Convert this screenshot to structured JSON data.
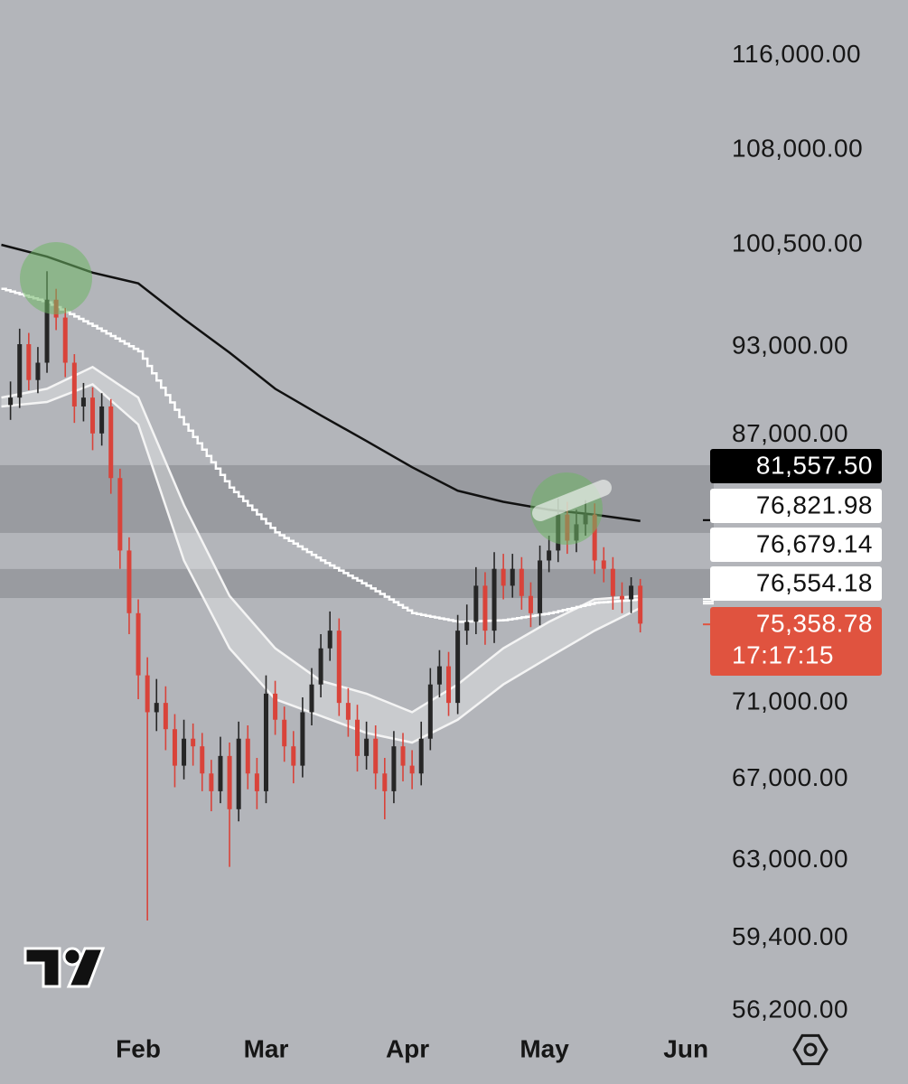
{
  "chart_data": {
    "type": "candlestick",
    "log_scale": true,
    "ylim": [
      55600,
      121000
    ],
    "xlim": [
      -30.3,
      126.1
    ],
    "yticks": [
      {
        "value": 116000,
        "label": "116,000.00"
      },
      {
        "value": 108000,
        "label": "108,000.00"
      },
      {
        "value": 100500,
        "label": "100,500.00"
      },
      {
        "value": 93000,
        "label": "93,000.00"
      },
      {
        "value": 87000,
        "label": "87,000.00"
      },
      {
        "value": 71000,
        "label": "71,000.00"
      },
      {
        "value": 67000,
        "label": "67,000.00"
      },
      {
        "value": 63000,
        "label": "63,000.00"
      },
      {
        "value": 59400,
        "label": "59,400.00"
      },
      {
        "value": 56200,
        "label": "56,200.00"
      }
    ],
    "xticks": [
      {
        "value": 0,
        "label": "Feb"
      },
      {
        "value": 28,
        "label": "Mar"
      },
      {
        "value": 59,
        "label": "Apr"
      },
      {
        "value": 89,
        "label": "May"
      },
      {
        "value": 120,
        "label": "Jun"
      }
    ],
    "up_color": "#262626",
    "down_color": "#d9433a",
    "x": [
      -28,
      -26,
      -24,
      -22,
      -20,
      -18,
      -16,
      -14,
      -12,
      -10,
      -8,
      -6,
      -4,
      -2,
      0,
      2,
      4,
      6,
      8,
      10,
      12,
      14,
      16,
      18,
      20,
      22,
      24,
      26,
      28,
      30,
      32,
      34,
      36,
      38,
      40,
      42,
      44,
      46,
      48,
      50,
      52,
      54,
      56,
      58,
      60,
      62,
      64,
      66,
      68,
      70,
      72,
      74,
      76,
      78,
      80,
      82,
      84,
      86,
      88,
      90,
      92,
      94,
      96,
      98,
      100,
      102,
      104,
      106,
      108,
      110
    ],
    "open": [
      89000,
      89500,
      93200,
      90700,
      91900,
      96400,
      95100,
      91900,
      88900,
      89500,
      87100,
      88900,
      84200,
      79700,
      76000,
      72500,
      70500,
      71000,
      69600,
      67700,
      69100,
      68700,
      67300,
      66400,
      68200,
      65500,
      69100,
      67300,
      66400,
      71500,
      70100,
      68700,
      67700,
      70500,
      72000,
      74000,
      75000,
      71000,
      70100,
      68200,
      69100,
      67300,
      66400,
      68700,
      67700,
      67300,
      69100,
      72000,
      73000,
      71000,
      75000,
      75500,
      77600,
      75000,
      78600,
      77600,
      78600,
      77000,
      76000,
      79100,
      79700,
      81900,
      80300,
      81300,
      81900,
      79100,
      78600,
      77000,
      76800,
      77600
    ],
    "high": [
      90600,
      94300,
      94000,
      93000,
      98500,
      97200,
      95800,
      92500,
      90500,
      90200,
      89800,
      89400,
      84800,
      80500,
      76800,
      73500,
      72300,
      71900,
      70400,
      70100,
      69900,
      69400,
      68000,
      69200,
      68900,
      70000,
      69800,
      68100,
      72500,
      72200,
      70800,
      69500,
      71300,
      72900,
      74800,
      76100,
      75700,
      71800,
      70900,
      70000,
      69800,
      68100,
      69500,
      69400,
      68500,
      70000,
      72900,
      73900,
      73800,
      75900,
      76500,
      78700,
      78400,
      79600,
      79500,
      79500,
      79300,
      77800,
      80000,
      80600,
      82900,
      82700,
      82200,
      82800,
      82600,
      79900,
      79300,
      77800,
      78100,
      78000
    ],
    "low": [
      88000,
      88800,
      90000,
      89800,
      91200,
      94200,
      90900,
      87800,
      87900,
      86000,
      86300,
      83200,
      78600,
      74800,
      71200,
      60200,
      69500,
      68500,
      66600,
      67000,
      67700,
      66400,
      65400,
      65800,
      62700,
      64900,
      66500,
      65500,
      65800,
      69300,
      67900,
      66800,
      67100,
      69800,
      71300,
      73300,
      70300,
      69200,
      67400,
      67500,
      66500,
      65000,
      65800,
      66900,
      66500,
      66700,
      68500,
      71300,
      70300,
      70400,
      74200,
      74800,
      74200,
      74300,
      76800,
      76900,
      76200,
      75200,
      75300,
      78400,
      79000,
      79500,
      79600,
      80600,
      78300,
      77800,
      76200,
      76000,
      76000,
      74900
    ],
    "close": [
      89500,
      93200,
      90700,
      91900,
      96400,
      95100,
      91900,
      88900,
      89500,
      87100,
      88900,
      84200,
      79700,
      76000,
      72500,
      70500,
      71000,
      69600,
      67700,
      69100,
      68700,
      67300,
      66400,
      68200,
      65500,
      69100,
      67300,
      66400,
      71500,
      70100,
      68700,
      67700,
      70500,
      72000,
      74000,
      75000,
      71000,
      70100,
      68200,
      69100,
      67300,
      66400,
      68700,
      67700,
      67300,
      69100,
      72000,
      73000,
      71000,
      75000,
      75500,
      77600,
      75000,
      78600,
      77600,
      78600,
      77000,
      76000,
      79100,
      79700,
      81900,
      80300,
      81300,
      81900,
      79100,
      78600,
      77000,
      76800,
      77600,
      75400
    ],
    "lines": [
      {
        "color": "#111111",
        "style": "line",
        "x": [
          -30,
          -20,
          -10,
          0,
          10,
          20,
          30,
          40,
          50,
          60,
          70,
          80,
          90,
          100,
          110
        ],
        "values": [
          100500,
          99600,
          98400,
          97600,
          95000,
          92600,
          90100,
          88300,
          86600,
          84900,
          83400,
          82700,
          82200,
          81900,
          81500
        ]
      },
      {
        "color": "#ffffff",
        "style": "step",
        "x": [
          -30,
          -20,
          -10,
          0,
          10,
          20,
          30,
          40,
          50,
          60,
          70,
          80,
          90,
          100,
          110
        ],
        "values": [
          97200,
          96200,
          94500,
          92700,
          87700,
          83600,
          80800,
          79100,
          77600,
          76000,
          75500,
          75600,
          76000,
          76600,
          76800
        ]
      }
    ],
    "band": {
      "color": "#f4f4f4",
      "x": [
        -30,
        -20,
        -10,
        0,
        10,
        20,
        30,
        40,
        50,
        60,
        70,
        80,
        90,
        100,
        110
      ],
      "upper": [
        89500,
        90100,
        91600,
        89500,
        82500,
        77000,
        74000,
        72200,
        71500,
        70500,
        72000,
        74000,
        75500,
        76800,
        77000
      ],
      "lower": [
        88900,
        89200,
        90400,
        87700,
        79100,
        74000,
        71200,
        70300,
        69400,
        68900,
        70100,
        72000,
        73500,
        75000,
        76300
      ]
    },
    "zones": [
      {
        "low": 80770,
        "high": 85030
      },
      {
        "low": 76880,
        "high": 78590
      }
    ],
    "price_labels": [
      {
        "value": 81557.5,
        "label": "81,557.50",
        "color": "#000000",
        "text_color": "#ffffff"
      },
      {
        "value": 76821.98,
        "label": "76,821.98",
        "color": "#ffffff",
        "text_color": "#111111"
      },
      {
        "value": 76679.14,
        "label": "76,679.14",
        "color": "#ffffff",
        "text_color": "#111111"
      },
      {
        "value": 76554.18,
        "label": "76,554.18",
        "color": "#ffffff",
        "text_color": "#111111"
      },
      {
        "value": 75358.78,
        "label": "75,358.78",
        "countdown": "17:17:15",
        "color": "#e0533f",
        "text_color": "#ffffff"
      }
    ]
  }
}
